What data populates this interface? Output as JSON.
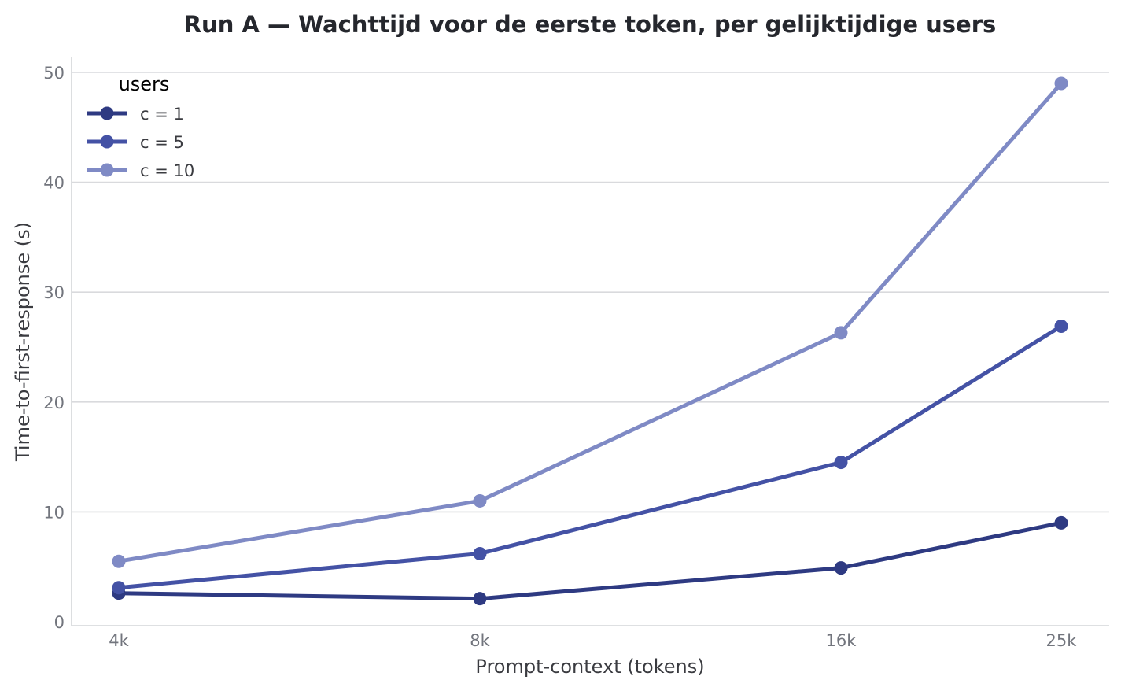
{
  "chart_data": {
    "type": "line",
    "title": "Run A — Wachttijd voor de eerste token, per gelijktijdige users",
    "xlabel": "Prompt-context (tokens)",
    "ylabel": "Time-to-first-response (s)",
    "categories": [
      "4k",
      "8k",
      "16k",
      "25k"
    ],
    "x": [
      4,
      8,
      16,
      25
    ],
    "ylim": [
      0,
      51.4
    ],
    "yticks": [
      0,
      10,
      20,
      30,
      40,
      50
    ],
    "grid": "horizontal",
    "legend": {
      "title": "users",
      "placement": "top-left"
    },
    "series": [
      {
        "name": "c = 1",
        "values": [
          2.6,
          2.1,
          4.9,
          9.0
        ],
        "color": "#2e3a82"
      },
      {
        "name": "c = 5",
        "values": [
          3.1,
          6.2,
          14.5,
          26.9
        ],
        "color": "#4452a5"
      },
      {
        "name": "c = 10",
        "values": [
          5.5,
          11.0,
          26.3,
          49.0
        ],
        "color": "#7f8ac5"
      }
    ]
  }
}
